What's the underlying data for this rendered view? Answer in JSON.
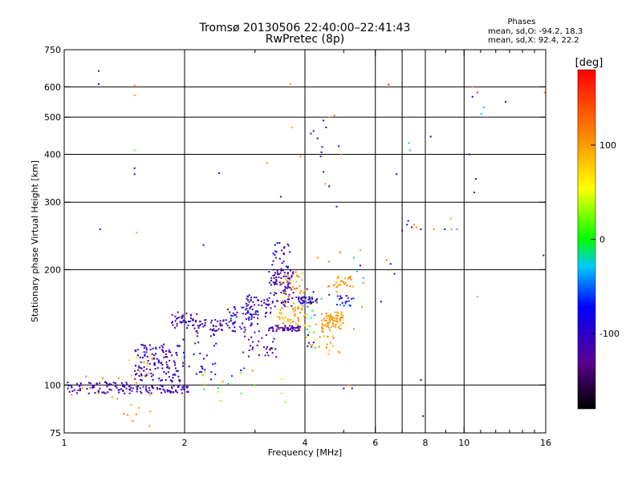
{
  "chart_data": {
    "type": "scatter",
    "title": "Tromsø 20130506 22:40:00–22:41:43",
    "subtitle": "RwPretec (8p)",
    "xlabel": "Frequency [MHz]",
    "ylabel": "Stationary phase Virtual Height [km]",
    "x_scale": "log",
    "y_scale": "log",
    "xlim": [
      1,
      16
    ],
    "ylim": [
      75,
      750
    ],
    "x_ticks": [
      1,
      2,
      4,
      6,
      8,
      10,
      16
    ],
    "x_tick_labels": [
      "1",
      "2",
      "4",
      "6",
      "8",
      "10",
      "16"
    ],
    "x_minor_ticks": [
      3,
      5,
      7,
      9,
      11,
      12,
      13,
      14,
      15
    ],
    "x_gridlines": [
      2,
      4,
      6,
      7,
      8,
      10
    ],
    "y_ticks": [
      75,
      100,
      200,
      300,
      400,
      500,
      600,
      750
    ],
    "y_tick_labels": [
      "75",
      "100",
      "200",
      "300",
      "400",
      "500",
      "600",
      "750"
    ],
    "y_gridlines": [
      100,
      200,
      300,
      400,
      500,
      600
    ],
    "grid": true,
    "legend": {
      "title": "Phases",
      "lines": [
        "mean, sd,O: -94.2, 18.3",
        "mean, sd,X:  92.4, 22.2"
      ],
      "placement": "top-right"
    },
    "colorbar": {
      "label": "[deg]",
      "range": [
        -180,
        180
      ],
      "ticks": [
        100,
        0,
        -100
      ],
      "tick_labels": [
        "100",
        "0",
        "-100"
      ],
      "placement": "right"
    },
    "points": [
      {
        "x": 1.22,
        "y": 660,
        "c": -110
      },
      {
        "x": 1.22,
        "y": 610,
        "c": -110
      },
      {
        "x": 1.23,
        "y": 255,
        "c": -110
      },
      {
        "x": 1.5,
        "y": 605,
        "c": 100
      },
      {
        "x": 1.5,
        "y": 570,
        "c": 100
      },
      {
        "x": 1.5,
        "y": 410,
        "c": 20
      },
      {
        "x": 1.5,
        "y": 368,
        "c": -110
      },
      {
        "x": 1.5,
        "y": 355,
        "c": -110
      },
      {
        "x": 1.52,
        "y": 250,
        "c": 20
      },
      {
        "x": 2.44,
        "y": 357,
        "c": -110
      },
      {
        "x": 2.23,
        "y": 232,
        "c": -110
      },
      {
        "x": 3.22,
        "y": 380,
        "c": 100
      },
      {
        "x": 3.48,
        "y": 310,
        "c": -110
      },
      {
        "x": 3.68,
        "y": 610,
        "c": 100
      },
      {
        "x": 3.72,
        "y": 470,
        "c": 100
      },
      {
        "x": 3.9,
        "y": 395,
        "c": 120
      },
      {
        "x": 4.14,
        "y": 453,
        "c": -110
      },
      {
        "x": 4.2,
        "y": 460,
        "c": -110
      },
      {
        "x": 4.3,
        "y": 440,
        "c": -110
      },
      {
        "x": 4.45,
        "y": 490,
        "c": -110
      },
      {
        "x": 4.52,
        "y": 470,
        "c": -110
      },
      {
        "x": 4.6,
        "y": 500,
        "c": 100
      },
      {
        "x": 4.74,
        "y": 505,
        "c": 130
      },
      {
        "x": 4.42,
        "y": 418,
        "c": -110
      },
      {
        "x": 4.5,
        "y": 335,
        "c": 100
      },
      {
        "x": 4.45,
        "y": 360,
        "c": -110
      },
      {
        "x": 4.6,
        "y": 330,
        "c": -140
      },
      {
        "x": 4.86,
        "y": 420,
        "c": -110
      },
      {
        "x": 4.93,
        "y": 400,
        "c": 110
      },
      {
        "x": 4.8,
        "y": 292,
        "c": -110
      },
      {
        "x": 4.4,
        "y": 405,
        "c": -110
      },
      {
        "x": 4.38,
        "y": 395,
        "c": -110
      },
      {
        "x": 6.48,
        "y": 608,
        "c": 170
      },
      {
        "x": 6.78,
        "y": 355,
        "c": -110
      },
      {
        "x": 7.28,
        "y": 428,
        "c": -30
      },
      {
        "x": 7.32,
        "y": 410,
        "c": -30
      },
      {
        "x": 8.25,
        "y": 445,
        "c": -140
      },
      {
        "x": 7.0,
        "y": 253,
        "c": -110
      },
      {
        "x": 7.2,
        "y": 262,
        "c": -110
      },
      {
        "x": 7.25,
        "y": 268,
        "c": -110
      },
      {
        "x": 7.4,
        "y": 258,
        "c": -110
      },
      {
        "x": 7.5,
        "y": 262,
        "c": 110
      },
      {
        "x": 7.6,
        "y": 258,
        "c": 110
      },
      {
        "x": 7.8,
        "y": 255,
        "c": -110
      },
      {
        "x": 8.4,
        "y": 255,
        "c": 110
      },
      {
        "x": 8.95,
        "y": 255,
        "c": -110
      },
      {
        "x": 9.3,
        "y": 255,
        "c": 110
      },
      {
        "x": 9.6,
        "y": 255,
        "c": -30
      },
      {
        "x": 9.25,
        "y": 272,
        "c": 100
      },
      {
        "x": 6.7,
        "y": 195,
        "c": -110
      },
      {
        "x": 6.55,
        "y": 207,
        "c": -110
      },
      {
        "x": 6.4,
        "y": 212,
        "c": 110
      },
      {
        "x": 6.2,
        "y": 165,
        "c": -140
      },
      {
        "x": 10.5,
        "y": 600,
        "c": 110
      },
      {
        "x": 10.8,
        "y": 580,
        "c": 160
      },
      {
        "x": 10.5,
        "y": 565,
        "c": -100
      },
      {
        "x": 11.2,
        "y": 530,
        "c": -30
      },
      {
        "x": 12.7,
        "y": 548,
        "c": -110
      },
      {
        "x": 11.05,
        "y": 510,
        "c": -30
      },
      {
        "x": 10.3,
        "y": 400,
        "c": -110
      },
      {
        "x": 10.7,
        "y": 345,
        "c": -140
      },
      {
        "x": 10.6,
        "y": 318,
        "c": -110
      },
      {
        "x": 10.8,
        "y": 170,
        "c": 100
      },
      {
        "x": 15.8,
        "y": 218,
        "c": -110
      },
      {
        "x": 15.9,
        "y": 580,
        "c": 100
      },
      {
        "x": 7.8,
        "y": 103,
        "c": -110
      },
      {
        "x": 7.9,
        "y": 83,
        "c": -140
      },
      {
        "x": 5.0,
        "y": 98,
        "c": -110
      },
      {
        "x": 5.25,
        "y": 98,
        "c": -110
      },
      {
        "x": 5.15,
        "y": 100,
        "c": 100
      },
      {
        "x": 4.05,
        "y": 178,
        "c": -110
      },
      {
        "x": 4.2,
        "y": 175,
        "c": -110
      },
      {
        "x": 4.4,
        "y": 168,
        "c": -30
      },
      {
        "x": 4.6,
        "y": 172,
        "c": -110
      },
      {
        "x": 4.8,
        "y": 175,
        "c": 110
      },
      {
        "x": 5.0,
        "y": 185,
        "c": 110
      },
      {
        "x": 5.2,
        "y": 192,
        "c": 100
      },
      {
        "x": 5.4,
        "y": 198,
        "c": -30
      },
      {
        "x": 5.5,
        "y": 205,
        "c": -110
      },
      {
        "x": 5.6,
        "y": 190,
        "c": -30
      },
      {
        "x": 5.3,
        "y": 215,
        "c": -30
      },
      {
        "x": 5.5,
        "y": 225,
        "c": 100
      },
      {
        "x": 5.55,
        "y": 160,
        "c": 110
      },
      {
        "x": 5.3,
        "y": 140,
        "c": 110
      },
      {
        "x": 5.6,
        "y": 185,
        "c": 110
      },
      {
        "x": 4.3,
        "y": 215,
        "c": 110
      },
      {
        "x": 4.6,
        "y": 210,
        "c": 120
      },
      {
        "x": 4.9,
        "y": 222,
        "c": 130
      }
    ],
    "clusters": [
      {
        "x_range": [
          1.02,
          1.45
        ],
        "y_range": [
          95,
          102
        ],
        "c_range": [
          -125,
          -95
        ],
        "n": 70,
        "seed": 11
      },
      {
        "x_range": [
          1.02,
          1.42
        ],
        "y_range": [
          90,
          112
        ],
        "c_range": [
          80,
          120
        ],
        "n": 8,
        "seed": 12
      },
      {
        "x_range": [
          1.45,
          2.05
        ],
        "y_range": [
          95,
          100
        ],
        "c_range": [
          -125,
          -95
        ],
        "n": 70,
        "seed": 13
      },
      {
        "x_range": [
          1.5,
          1.95
        ],
        "y_range": [
          102,
          128
        ],
        "c_range": [
          -125,
          -90
        ],
        "n": 130,
        "seed": 14
      },
      {
        "x_range": [
          1.45,
          1.7
        ],
        "y_range": [
          100,
          120
        ],
        "c_range": [
          70,
          125
        ],
        "n": 12,
        "seed": 15
      },
      {
        "x_range": [
          1.3,
          1.75
        ],
        "y_range": [
          78,
          95
        ],
        "c_range": [
          80,
          130
        ],
        "n": 10,
        "seed": 16
      },
      {
        "x_range": [
          1.85,
          2.15
        ],
        "y_range": [
          140,
          155
        ],
        "c_range": [
          -125,
          -95
        ],
        "n": 40,
        "seed": 17
      },
      {
        "x_range": [
          1.95,
          2.4
        ],
        "y_range": [
          105,
          140
        ],
        "c_range": [
          -125,
          -60
        ],
        "n": 30,
        "seed": 18
      },
      {
        "x_range": [
          2.1,
          2.6
        ],
        "y_range": [
          138,
          148
        ],
        "c_range": [
          -125,
          -95
        ],
        "n": 45,
        "seed": 19
      },
      {
        "x_range": [
          2.2,
          3.6
        ],
        "y_range": [
          90,
          112
        ],
        "c_range": [
          -120,
          120
        ],
        "n": 22,
        "seed": 20
      },
      {
        "x_range": [
          2.55,
          3.05
        ],
        "y_range": [
          138,
          160
        ],
        "c_range": [
          -130,
          -50
        ],
        "n": 55,
        "seed": 21
      },
      {
        "x_range": [
          2.85,
          3.3
        ],
        "y_range": [
          150,
          172
        ],
        "c_range": [
          -135,
          -95
        ],
        "n": 45,
        "seed": 22
      },
      {
        "x_range": [
          2.8,
          3.4
        ],
        "y_range": [
          118,
          140
        ],
        "c_range": [
          -130,
          -95
        ],
        "n": 35,
        "seed": 23
      },
      {
        "x_range": [
          3.2,
          3.9
        ],
        "y_range": [
          138,
          143
        ],
        "c_range": [
          -130,
          -100
        ],
        "n": 55,
        "seed": 24
      },
      {
        "x_range": [
          3.25,
          3.75
        ],
        "y_range": [
          160,
          200
        ],
        "c_range": [
          -135,
          -95
        ],
        "n": 90,
        "seed": 25
      },
      {
        "x_range": [
          3.3,
          3.7
        ],
        "y_range": [
          200,
          235
        ],
        "c_range": [
          -130,
          -70
        ],
        "n": 25,
        "seed": 26
      },
      {
        "x_range": [
          3.4,
          4.0
        ],
        "y_range": [
          140,
          160
        ],
        "c_range": [
          75,
          120
        ],
        "n": 45,
        "seed": 27
      },
      {
        "x_range": [
          3.5,
          4.0
        ],
        "y_range": [
          160,
          200
        ],
        "c_range": [
          80,
          125
        ],
        "n": 35,
        "seed": 28
      },
      {
        "x_range": [
          3.8,
          4.3
        ],
        "y_range": [
          163,
          170
        ],
        "c_range": [
          -125,
          -80
        ],
        "n": 35,
        "seed": 29
      },
      {
        "x_range": [
          4.0,
          4.35
        ],
        "y_range": [
          125,
          168
        ],
        "c_range": [
          -120,
          120
        ],
        "n": 25,
        "seed": 30
      },
      {
        "x_range": [
          4.4,
          5.0
        ],
        "y_range": [
          140,
          155
        ],
        "c_range": [
          90,
          120
        ],
        "n": 70,
        "seed": 31
      },
      {
        "x_range": [
          4.5,
          5.3
        ],
        "y_range": [
          180,
          192
        ],
        "c_range": [
          85,
          125
        ],
        "n": 25,
        "seed": 32
      },
      {
        "x_range": [
          4.3,
          4.9
        ],
        "y_range": [
          120,
          140
        ],
        "c_range": [
          80,
          120
        ],
        "n": 20,
        "seed": 33
      },
      {
        "x_range": [
          4.8,
          5.3
        ],
        "y_range": [
          160,
          172
        ],
        "c_range": [
          -110,
          -40
        ],
        "n": 20,
        "seed": 34
      }
    ]
  }
}
